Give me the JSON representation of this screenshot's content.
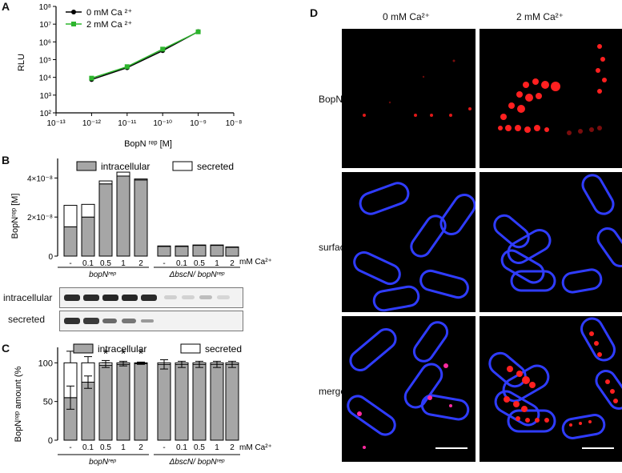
{
  "figure": {
    "panels": {
      "A": "A",
      "B": "B",
      "C": "C",
      "D": "D"
    }
  },
  "panel_a": {
    "legend": [
      "0 mM Ca ²⁺",
      "2 mM Ca ²⁺"
    ],
    "ylabel": "RLU",
    "xlabel": "BopN ʳᵉᵖ [M]",
    "x_ticks": [
      "10⁻¹³",
      "10⁻¹²",
      "10⁻¹¹",
      "10⁻¹⁰",
      "10⁻⁹",
      "10⁻⁸"
    ],
    "y_ticks": [
      "10²",
      "10³",
      "10⁴",
      "10⁵",
      "10⁶",
      "10⁷",
      "10⁸"
    ]
  },
  "panel_b": {
    "legend": [
      "intracellular",
      "secreted"
    ],
    "ylabel": "BopNʳᵉᵖ [M]",
    "y_ticks": [
      "0",
      "2×10⁻⁸",
      "4×10⁻⁸"
    ],
    "x_ticks": [
      "-",
      "0.1",
      "0.5",
      "1",
      "2",
      "-",
      "0.1",
      "0.5",
      "1",
      "2"
    ],
    "unit": "mM Ca²⁺",
    "groups": [
      "bopNʳᵉᵖ",
      "ΔbscN/ bopNʳᵉᵖ"
    ],
    "blot_labels": [
      "intracellular",
      "secreted"
    ]
  },
  "panel_c": {
    "legend": [
      "intracellular",
      "secreted"
    ],
    "ylabel": "BopNʳᵉᵖ amount (%",
    "y_ticks": [
      "0",
      "50",
      "100"
    ],
    "x_ticks": [
      "-",
      "0.1",
      "0.5",
      "1",
      "2",
      "-",
      "0.1",
      "0.5",
      "1",
      "2"
    ],
    "unit": "mM Ca²⁺",
    "groups": [
      "bopNʳᵉᵖ",
      "ΔbscN/ bopNʳᵉᵖ"
    ],
    "asterisk": "*"
  },
  "panel_d": {
    "columns": [
      "0 mM Ca²⁺",
      "2 mM Ca²⁺"
    ],
    "rows": [
      "BopN",
      "surface",
      "merge"
    ]
  },
  "chart_data": [
    {
      "type": "line",
      "panel": "A",
      "xscale": "log",
      "yscale": "log",
      "xlim": [
        1e-13,
        1e-08
      ],
      "ylim": [
        100,
        100000000
      ],
      "xlabel": "BopN ʳᵉᵖ [M]",
      "ylabel": "RLU",
      "legend_position": "top-left",
      "x": [
        1e-12,
        1e-11,
        1e-10,
        1e-09
      ],
      "series": [
        {
          "name": "0 mM Ca ²⁺",
          "color": "#000000",
          "values": [
            7500,
            35000,
            320000,
            3800000
          ]
        },
        {
          "name": "2 mM Ca ²⁺",
          "color": "#2db52d",
          "values": [
            9000,
            40000,
            390000,
            3700000
          ]
        }
      ]
    },
    {
      "type": "bar",
      "panel": "B",
      "stacked": true,
      "ylim": [
        0,
        5e-08
      ],
      "ylabel": "BopNʳᵉᵖ [M]",
      "categories": [
        "-",
        "0.1",
        "0.5",
        "1",
        "2",
        "-",
        "0.1",
        "0.5",
        "1",
        "2"
      ],
      "groups": [
        "bopNʳᵉᵖ",
        "ΔbscN/ bopNʳᵉᵖ"
      ],
      "legend_position": "top",
      "series": [
        {
          "name": "intracellular",
          "color": "#a6a6a6",
          "values": [
            1.5e-08,
            2e-08,
            3.7e-08,
            4.1e-08,
            3.9e-08,
            5e-09,
            5e-09,
            5.5e-09,
            5.5e-09,
            4.5e-09
          ]
        },
        {
          "name": "secreted",
          "color": "#ffffff",
          "values": [
            1.1e-08,
            6.5e-09,
            1.5e-09,
            2e-09,
            5e-10,
            2e-10,
            2e-10,
            2e-10,
            2e-10,
            2e-10
          ]
        }
      ]
    },
    {
      "type": "bar",
      "panel": "C",
      "stacked": true,
      "ylim": [
        0,
        120
      ],
      "ylabel": "BopNʳᵉᵖ amount (%",
      "categories": [
        "-",
        "0.1",
        "0.5",
        "1",
        "2",
        "-",
        "0.1",
        "0.5",
        "1",
        "2"
      ],
      "groups": [
        "bopNʳᵉᵖ",
        "ΔbscN/ bopNʳᵉᵖ"
      ],
      "legend_position": "top",
      "annotations": [
        "*",
        "*",
        "*"
      ],
      "series": [
        {
          "name": "intracellular",
          "color": "#a6a6a6",
          "values": [
            55,
            75,
            97,
            98,
            99,
            98,
            98,
            98,
            98,
            98
          ],
          "errors": [
            15,
            8,
            3,
            2,
            1,
            6,
            4,
            4,
            4,
            4
          ]
        },
        {
          "name": "secreted",
          "color": "#ffffff",
          "values": [
            45,
            25,
            3,
            2,
            1,
            2,
            2,
            2,
            2,
            2
          ],
          "errors": [
            15,
            8,
            3,
            2,
            1,
            0,
            0,
            0,
            0,
            0
          ]
        }
      ]
    }
  ]
}
